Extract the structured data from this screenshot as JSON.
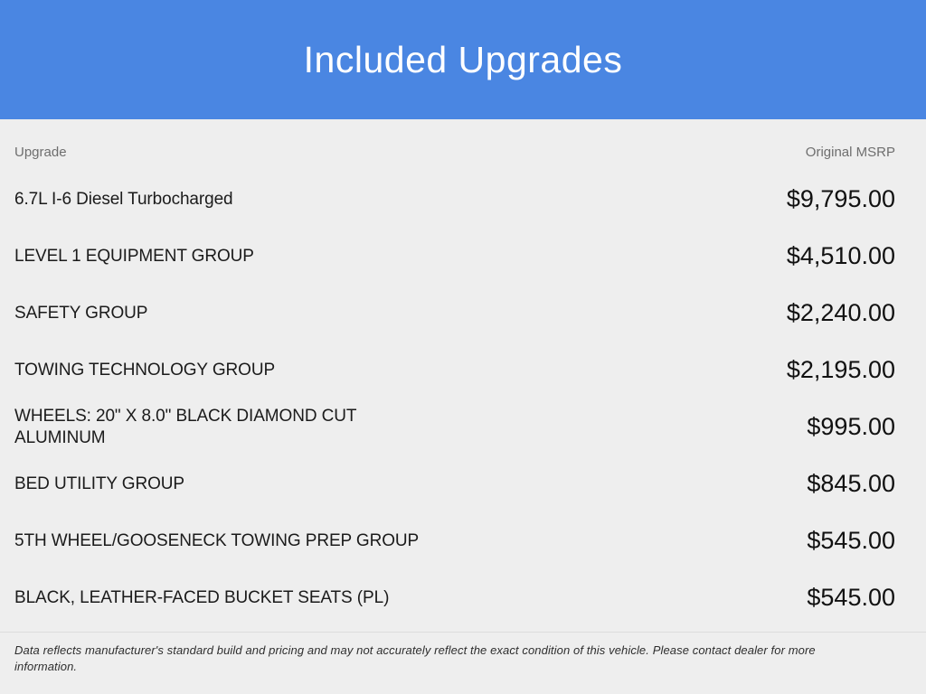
{
  "header": {
    "title": "Included Upgrades"
  },
  "table": {
    "columns": {
      "upgrade": "Upgrade",
      "msrp": "Original MSRP"
    },
    "rows": [
      {
        "name": "6.7L I-6 Diesel Turbocharged",
        "price": "$9,795.00"
      },
      {
        "name": "LEVEL 1 EQUIPMENT GROUP",
        "price": "$4,510.00"
      },
      {
        "name": "SAFETY GROUP",
        "price": "$2,240.00"
      },
      {
        "name": "TOWING TECHNOLOGY GROUP",
        "price": "$2,195.00"
      },
      {
        "name": "WHEELS: 20\" X 8.0\" BLACK DIAMOND CUT ALUMINUM",
        "price": "$995.00"
      },
      {
        "name": "BED UTILITY GROUP",
        "price": "$845.00"
      },
      {
        "name": "5TH WHEEL/GOOSENECK TOWING PREP GROUP",
        "price": "$545.00"
      },
      {
        "name": "BLACK, LEATHER-FACED BUCKET SEATS (PL)",
        "price": "$545.00"
      }
    ]
  },
  "footer": {
    "disclaimer": "Data reflects manufacturer's standard build and pricing and may not accurately reflect the exact condition of this vehicle. Please contact dealer for more information."
  },
  "colors": {
    "header_bg": "#4a86e2",
    "page_bg": "#eeeeee",
    "text": "#1b1b1b",
    "muted": "#6e6e6e"
  }
}
